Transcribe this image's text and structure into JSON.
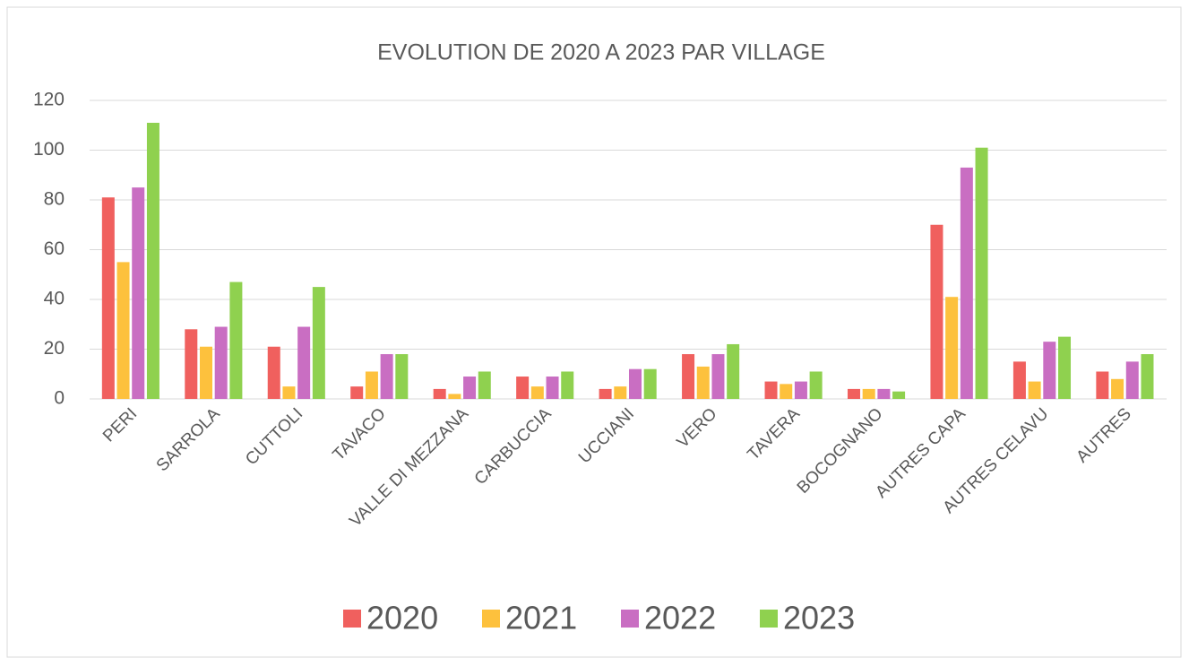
{
  "chart_data": {
    "type": "bar",
    "title": "EVOLUTION DE 2020 A 2023 PAR VILLAGE",
    "categories": [
      "PERI",
      "SARROLA",
      "CUTTOLI",
      "TAVACO",
      "VALLE DI MEZZANA",
      "CARBUCCIA",
      "UCCIANI",
      "VERO",
      "TAVERA",
      "BOCOGNANO",
      "AUTRES CAPA",
      "AUTRES CELAVU",
      "AUTRES"
    ],
    "series": [
      {
        "name": "2020",
        "color": "#f0605e",
        "values": [
          81,
          28,
          21,
          5,
          4,
          9,
          4,
          18,
          7,
          4,
          70,
          15,
          11
        ]
      },
      {
        "name": "2021",
        "color": "#fdc13d",
        "values": [
          55,
          21,
          5,
          11,
          2,
          5,
          5,
          13,
          6,
          4,
          41,
          7,
          8
        ]
      },
      {
        "name": "2022",
        "color": "#c96ec2",
        "values": [
          85,
          29,
          29,
          18,
          9,
          9,
          12,
          18,
          7,
          4,
          93,
          23,
          15
        ]
      },
      {
        "name": "2023",
        "color": "#8fd14f",
        "values": [
          111,
          47,
          45,
          18,
          11,
          11,
          12,
          22,
          11,
          3,
          101,
          25,
          18
        ]
      }
    ],
    "ylim": [
      0,
      120
    ],
    "yticks": [
      0,
      20,
      40,
      60,
      80,
      100,
      120
    ],
    "grid": true,
    "legend": "bottom"
  }
}
